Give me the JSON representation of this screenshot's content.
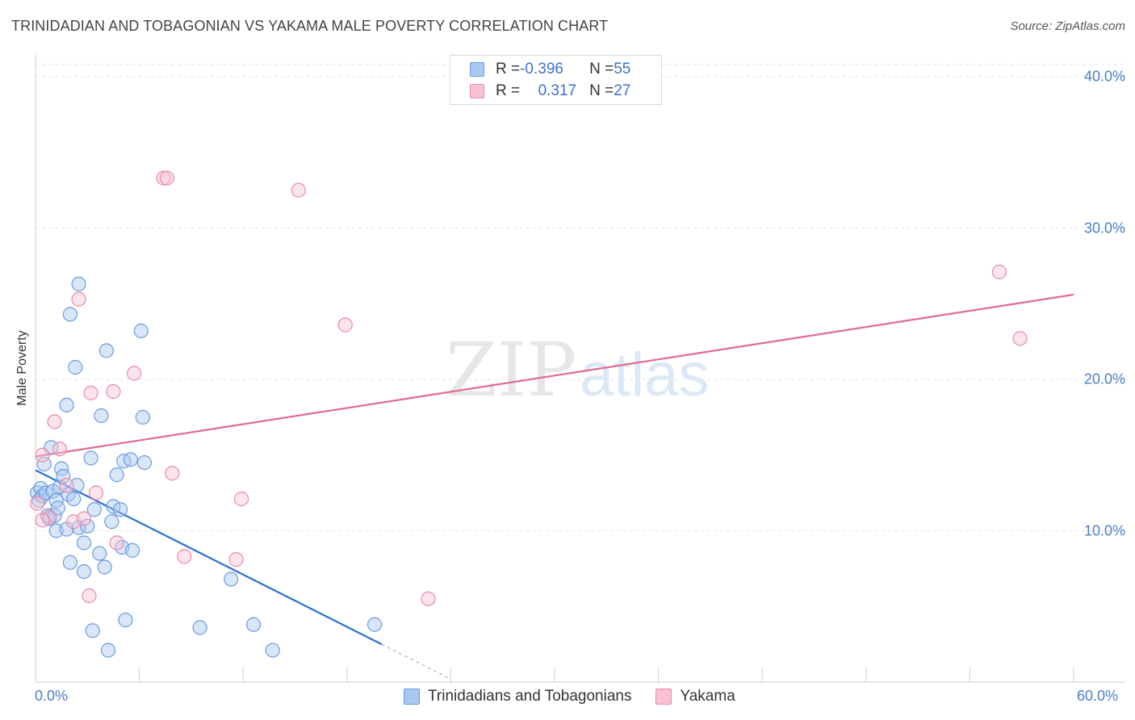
{
  "title": "TRINIDADIAN AND TOBAGONIAN VS YAKAMA MALE POVERTY CORRELATION CHART",
  "source": "Source: ZipAtlas.com",
  "watermark": {
    "zip": "ZIP",
    "atlas": "atlas"
  },
  "stats": [
    {
      "r_label": "R = ",
      "r_value": "-0.396",
      "n_label": "N = ",
      "n_value": "55",
      "color": "#a9c8f0",
      "border": "#6a9be0"
    },
    {
      "r_label": "R = ",
      "r_value": "0.317",
      "n_label": "N = ",
      "n_value": "27",
      "color": "#f7c3d3",
      "border": "#e98aa8"
    }
  ],
  "chart_data": {
    "type": "scatter",
    "title": "TRINIDADIAN AND TOBAGONIAN VS YAKAMA MALE POVERTY CORRELATION CHART",
    "xlabel": "",
    "ylabel": "Male Poverty",
    "xlim": [
      0,
      60
    ],
    "ylim": [
      0,
      40.8
    ],
    "x_tick_labels": [
      "0.0%",
      "60.0%"
    ],
    "y_ticks": [
      10,
      20,
      30,
      40
    ],
    "y_tick_labels": [
      "10.0%",
      "20.0%",
      "30.0%",
      "40.0%"
    ],
    "grid": true,
    "legend": [
      "Trinidadians and Tobagonians",
      "Yakama"
    ],
    "series": [
      {
        "name": "Trinidadians and Tobagonians",
        "color": "#a9c8f0",
        "edge": "#6a9be0",
        "line_color": "#2f6fd6",
        "trend": {
          "x0": 0,
          "y0": 14.0,
          "x1": 20,
          "y1": 2.5,
          "dash_to_x": 24
        },
        "points": [
          [
            0.1,
            12.5
          ],
          [
            0.2,
            12.0
          ],
          [
            0.3,
            12.8
          ],
          [
            0.4,
            12.3
          ],
          [
            0.5,
            14.4
          ],
          [
            0.6,
            12.5
          ],
          [
            0.7,
            11.0
          ],
          [
            0.8,
            10.8
          ],
          [
            0.9,
            15.5
          ],
          [
            1.0,
            12.6
          ],
          [
            1.1,
            11.0
          ],
          [
            1.2,
            10.0
          ],
          [
            1.2,
            12.0
          ],
          [
            1.3,
            11.5
          ],
          [
            1.4,
            12.9
          ],
          [
            1.5,
            14.1
          ],
          [
            1.6,
            13.6
          ],
          [
            1.8,
            10.1
          ],
          [
            1.8,
            18.3
          ],
          [
            1.9,
            12.4
          ],
          [
            2.0,
            7.9
          ],
          [
            2.0,
            24.3
          ],
          [
            2.2,
            12.1
          ],
          [
            2.3,
            20.8
          ],
          [
            2.4,
            13.0
          ],
          [
            2.5,
            26.3
          ],
          [
            2.5,
            10.2
          ],
          [
            2.8,
            7.3
          ],
          [
            2.8,
            9.2
          ],
          [
            3.0,
            10.3
          ],
          [
            3.2,
            14.8
          ],
          [
            3.3,
            3.4
          ],
          [
            3.4,
            11.4
          ],
          [
            3.7,
            8.5
          ],
          [
            3.8,
            17.6
          ],
          [
            4.0,
            7.6
          ],
          [
            4.1,
            21.9
          ],
          [
            4.2,
            2.1
          ],
          [
            4.4,
            10.6
          ],
          [
            4.5,
            11.6
          ],
          [
            4.7,
            13.7
          ],
          [
            4.9,
            11.4
          ],
          [
            5.0,
            8.9
          ],
          [
            5.1,
            14.6
          ],
          [
            5.2,
            4.1
          ],
          [
            5.5,
            14.7
          ],
          [
            5.6,
            8.7
          ],
          [
            6.1,
            23.2
          ],
          [
            6.2,
            17.5
          ],
          [
            6.3,
            14.5
          ],
          [
            9.5,
            3.6
          ],
          [
            11.3,
            6.8
          ],
          [
            12.6,
            3.8
          ],
          [
            13.7,
            2.1
          ],
          [
            19.6,
            3.8
          ]
        ]
      },
      {
        "name": "Yakama",
        "color": "#f7c3d3",
        "edge": "#e98aa8",
        "line_color": "#e06b92",
        "trend": {
          "x0": 0,
          "y0": 14.9,
          "x1": 60,
          "y1": 25.6
        },
        "points": [
          [
            0.1,
            11.8
          ],
          [
            0.4,
            15.0
          ],
          [
            0.8,
            10.9
          ],
          [
            1.1,
            17.2
          ],
          [
            1.4,
            15.4
          ],
          [
            1.8,
            13.0
          ],
          [
            2.2,
            10.6
          ],
          [
            2.5,
            25.3
          ],
          [
            2.8,
            10.8
          ],
          [
            3.1,
            5.7
          ],
          [
            3.2,
            19.1
          ],
          [
            3.5,
            12.5
          ],
          [
            4.5,
            19.2
          ],
          [
            4.7,
            9.2
          ],
          [
            5.7,
            20.4
          ],
          [
            7.4,
            33.3
          ],
          [
            7.6,
            33.3
          ],
          [
            7.9,
            13.8
          ],
          [
            8.6,
            8.3
          ],
          [
            11.6,
            8.1
          ],
          [
            11.9,
            12.1
          ],
          [
            15.2,
            32.5
          ],
          [
            17.9,
            23.6
          ],
          [
            22.7,
            5.5
          ],
          [
            55.7,
            27.1
          ],
          [
            56.9,
            22.7
          ],
          [
            0.4,
            10.7
          ]
        ]
      }
    ]
  }
}
